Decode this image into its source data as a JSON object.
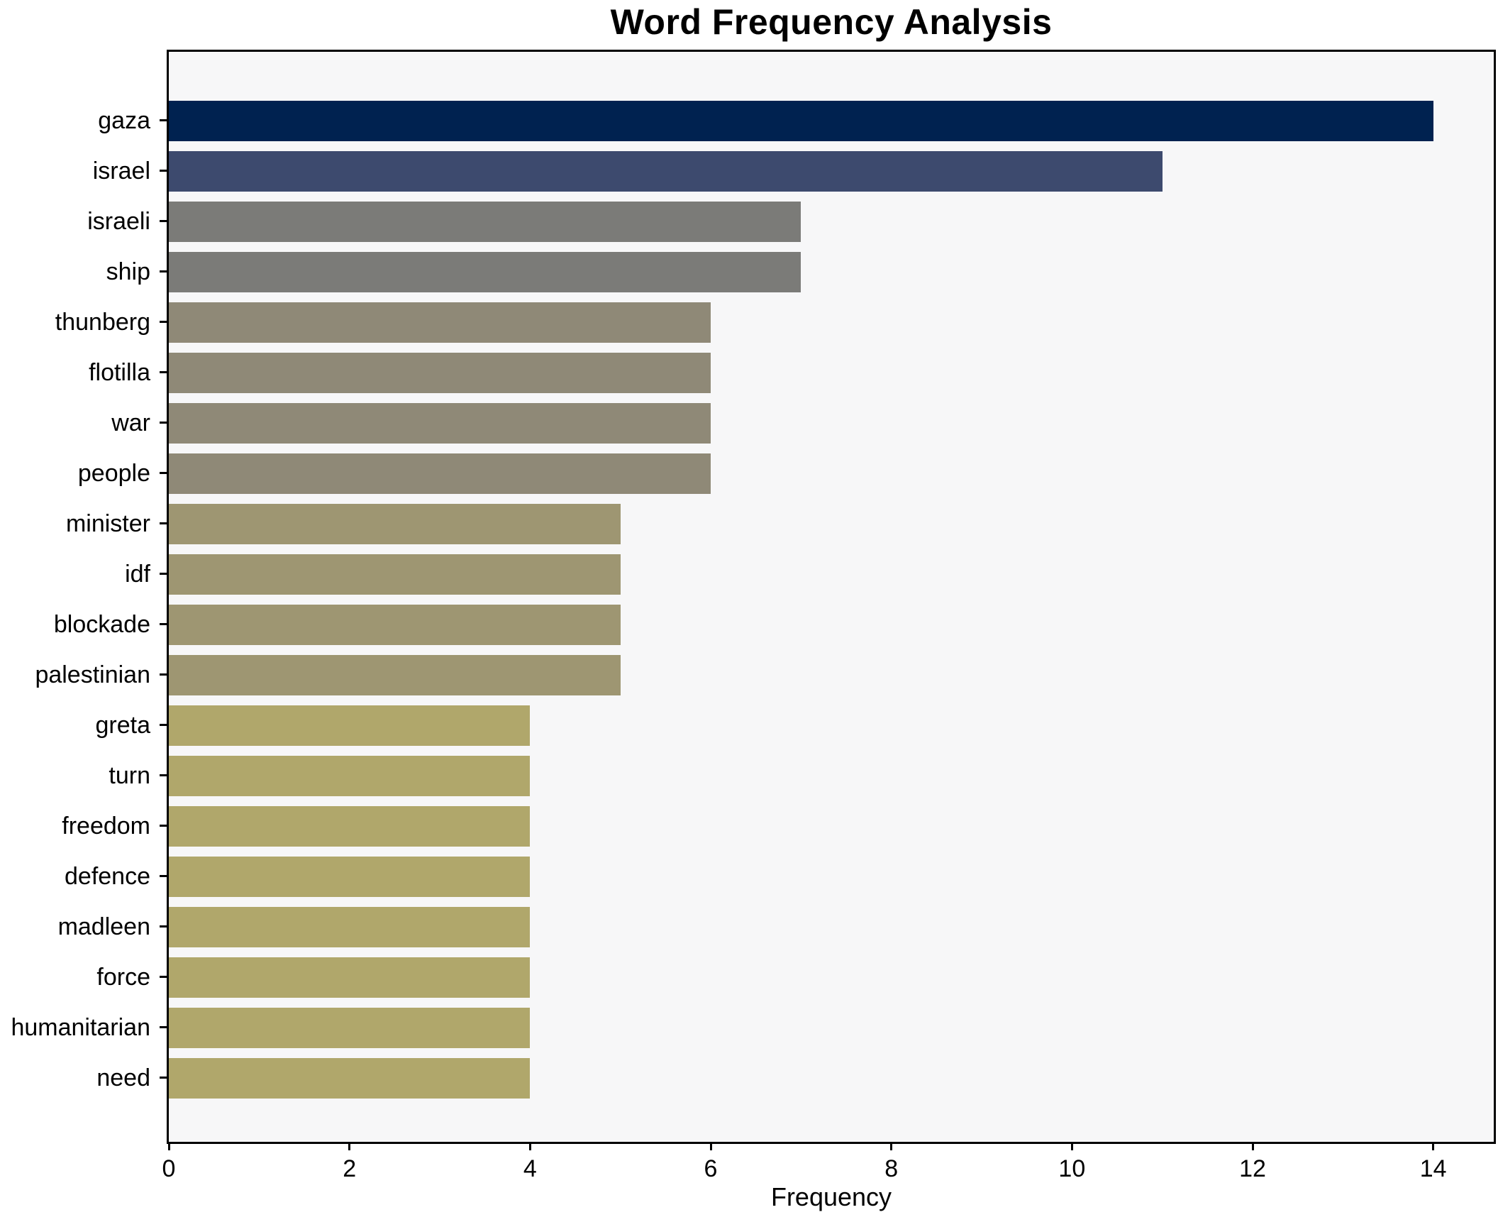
{
  "chart_data": {
    "type": "bar",
    "orientation": "horizontal",
    "title": "Word Frequency Analysis",
    "xlabel": "Frequency",
    "ylabel": "",
    "categories": [
      "gaza",
      "israel",
      "israeli",
      "ship",
      "thunberg",
      "flotilla",
      "war",
      "people",
      "minister",
      "idf",
      "blockade",
      "palestinian",
      "greta",
      "turn",
      "freedom",
      "defence",
      "madleen",
      "force",
      "humanitarian",
      "need"
    ],
    "values": [
      14,
      11,
      7,
      7,
      6,
      6,
      6,
      6,
      5,
      5,
      5,
      5,
      4,
      4,
      4,
      4,
      4,
      4,
      4,
      4
    ],
    "bar_colors": [
      "#002250",
      "#3d4a6e",
      "#7b7b78",
      "#7b7b78",
      "#8f8977",
      "#8f8977",
      "#8f8977",
      "#8f8977",
      "#9e9672",
      "#9e9672",
      "#9e9672",
      "#9e9672",
      "#b0a76b",
      "#b0a76b",
      "#b0a76b",
      "#b0a76b",
      "#b0a76b",
      "#b0a76b",
      "#b0a76b",
      "#b0a76b"
    ],
    "xticks": [
      0,
      2,
      4,
      6,
      8,
      10,
      12,
      14
    ],
    "xlim": [
      0,
      14.67
    ],
    "grid": false,
    "legend_position": "none",
    "plot_background": "#f7f7f8",
    "figure_background": "#ffffff",
    "spine_color": "#000000",
    "colormap": "cividis (darker = higher frequency)"
  }
}
